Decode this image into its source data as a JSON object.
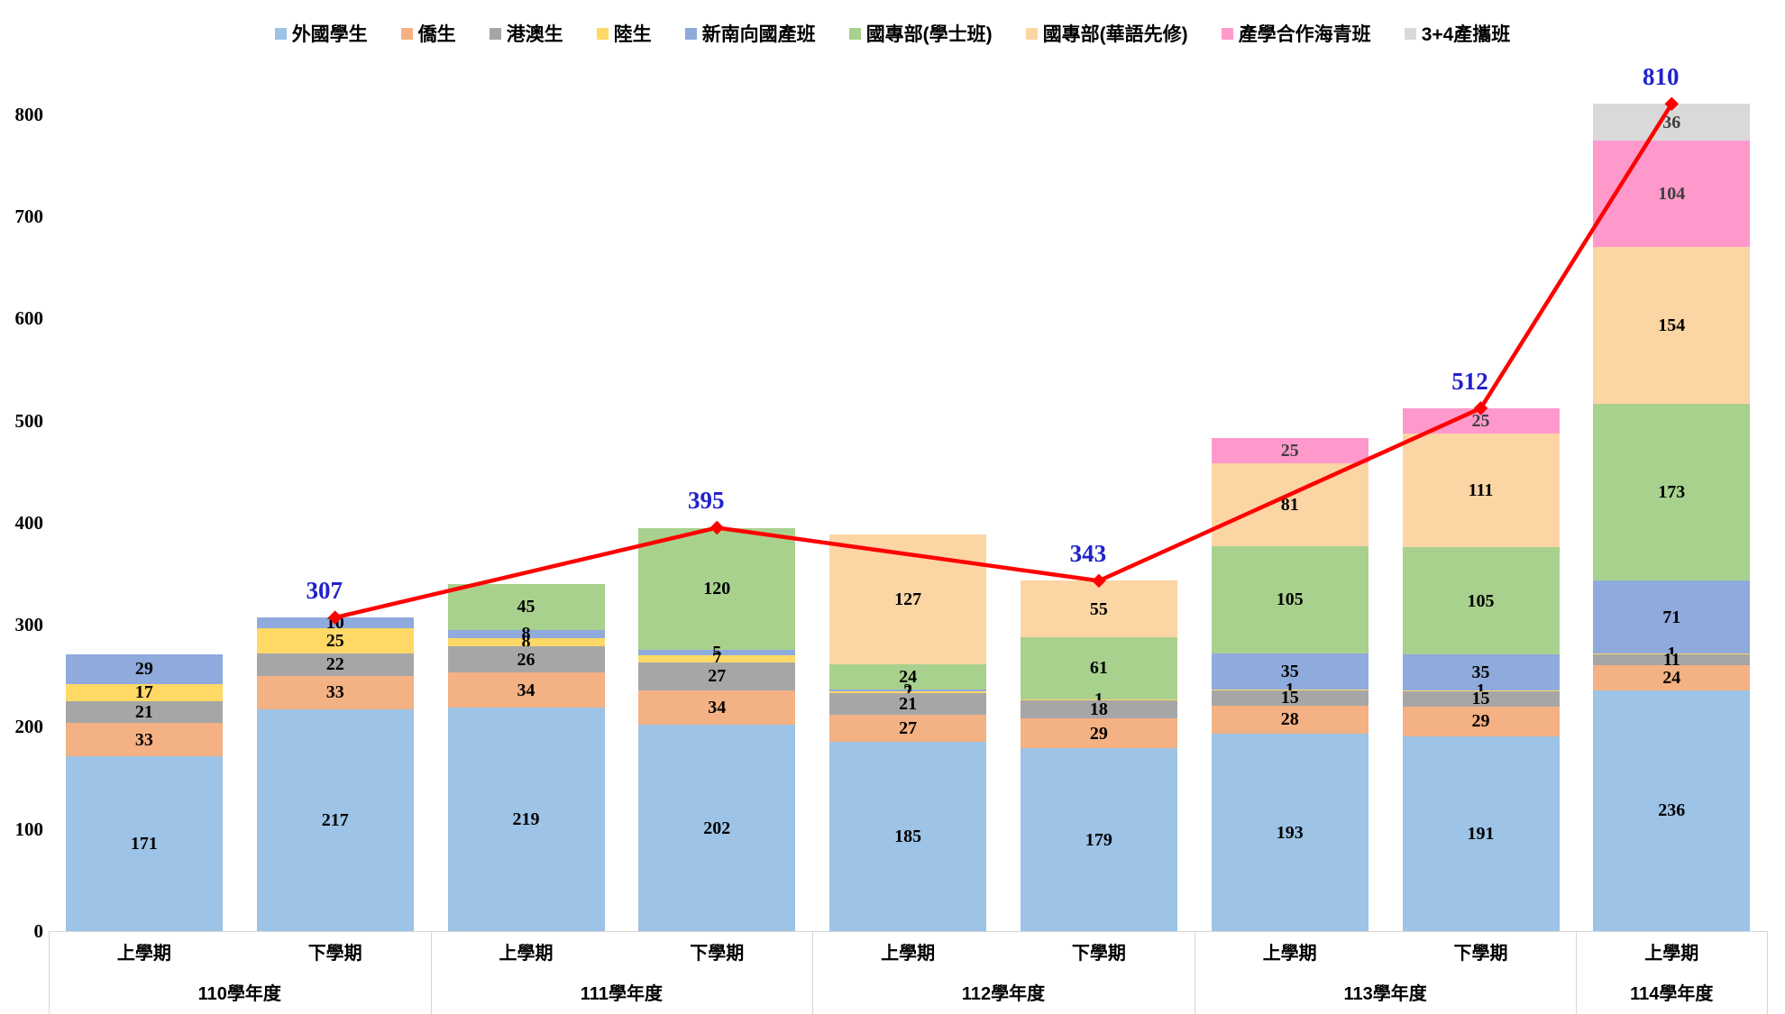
{
  "chart_data": {
    "type": "bar",
    "stacked": true,
    "grid": false,
    "legend_position": "top",
    "ylim": [
      0,
      800
    ],
    "y_axis": {
      "tick_min": 0,
      "tick_max": 800,
      "tick_step": 100
    },
    "categories": [
      "上學期",
      "下學期",
      "上學期",
      "下學期",
      "上學期",
      "下學期",
      "上學期",
      "下學期",
      "上學期"
    ],
    "year_groups": [
      {
        "label": "110學年度",
        "bars": 2
      },
      {
        "label": "111學年度",
        "bars": 2
      },
      {
        "label": "112學年度",
        "bars": 2
      },
      {
        "label": "113學年度",
        "bars": 2
      },
      {
        "label": "114學年度",
        "bars": 1
      }
    ],
    "series": [
      {
        "name": "外國學生",
        "color": "#9DC3E6",
        "label_color": "#000000",
        "values": [
          171,
          217,
          219,
          202,
          185,
          179,
          193,
          191,
          236
        ]
      },
      {
        "name": "僑生",
        "color": "#F4B183",
        "label_color": "#000000",
        "values": [
          33,
          33,
          34,
          34,
          27,
          29,
          28,
          29,
          24
        ]
      },
      {
        "name": "港澳生",
        "color": "#A6A6A6",
        "label_color": "#000000",
        "values": [
          21,
          22,
          26,
          27,
          21,
          18,
          15,
          15,
          11
        ]
      },
      {
        "name": "陸生",
        "color": "#FFD966",
        "label_color": "#000000",
        "values": [
          17,
          25,
          8,
          7,
          2,
          1,
          1,
          1,
          1
        ]
      },
      {
        "name": "新南向國產班",
        "color": "#8FAADC",
        "label_color": "#000000",
        "values": [
          29,
          10,
          8,
          5,
          2,
          0,
          35,
          35,
          71
        ]
      },
      {
        "name": "國專部(學士班)",
        "color": "#A9D18E",
        "label_color": "#000000",
        "values": [
          0,
          0,
          45,
          120,
          24,
          61,
          105,
          105,
          173
        ]
      },
      {
        "name": "國專部(華語先修)",
        "color": "#FCD5A5",
        "label_color": "#000000",
        "values": [
          0,
          0,
          0,
          0,
          127,
          55,
          81,
          111,
          154
        ]
      },
      {
        "name": "產學合作海青班",
        "color": "#FF99CC",
        "label_color": "#3F3F3F",
        "values": [
          0,
          0,
          0,
          0,
          0,
          0,
          25,
          25,
          104
        ]
      },
      {
        "name": "3+4產攜班",
        "color": "#D9D9D9",
        "label_color": "#3F3F3F",
        "values": [
          0,
          0,
          0,
          0,
          0,
          0,
          0,
          0,
          36
        ]
      }
    ],
    "total_line": {
      "color": "#FF0000",
      "label_color": "#2222CC",
      "marker": "diamond",
      "points": [
        {
          "category_index": 1,
          "value": 307
        },
        {
          "category_index": 3,
          "value": 395
        },
        {
          "category_index": 5,
          "value": 343
        },
        {
          "category_index": 7,
          "value": 512
        },
        {
          "category_index": 8,
          "value": 810
        }
      ]
    }
  }
}
